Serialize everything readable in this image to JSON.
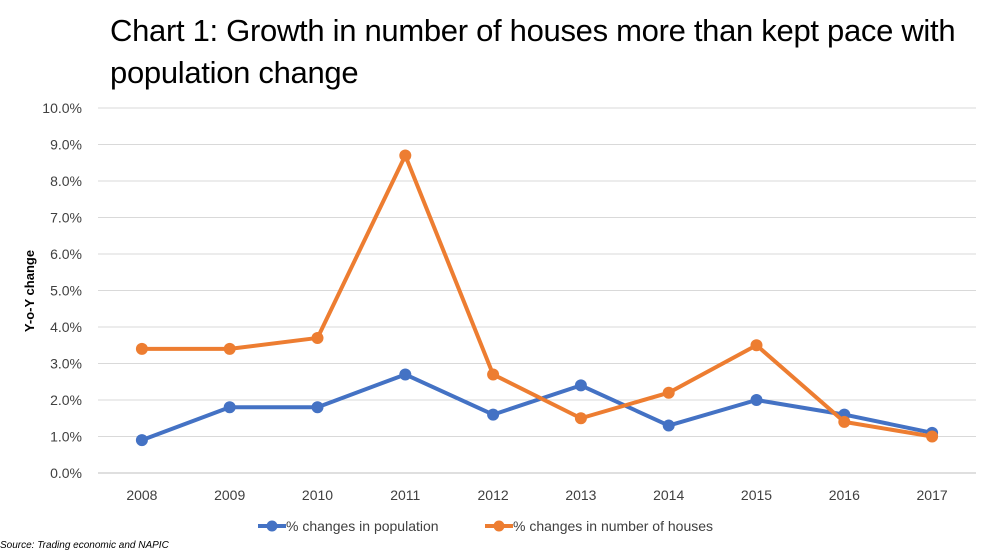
{
  "chart_data": {
    "type": "line",
    "title": "Chart 1: Growth in number of houses more than kept pace with population change",
    "ylabel": "Y-o-Y change",
    "xlabel": "",
    "x": [
      "2008",
      "2009",
      "2010",
      "2011",
      "2012",
      "2013",
      "2014",
      "2015",
      "2016",
      "2017"
    ],
    "ylim": [
      0,
      10
    ],
    "yticks": [
      "0.0%",
      "1.0%",
      "2.0%",
      "3.0%",
      "4.0%",
      "5.0%",
      "6.0%",
      "7.0%",
      "8.0%",
      "9.0%",
      "10.0%"
    ],
    "grid": true,
    "legend_position": "bottom",
    "series": [
      {
        "name": "% changes in population",
        "color": "#4472C4",
        "values": [
          0.9,
          1.8,
          1.8,
          2.7,
          1.6,
          2.4,
          1.3,
          2.0,
          1.6,
          1.1
        ]
      },
      {
        "name": "% changes in number of houses",
        "color": "#ED7D31",
        "values": [
          3.4,
          3.4,
          3.7,
          8.7,
          2.7,
          1.5,
          2.2,
          3.5,
          1.4,
          1.0
        ]
      }
    ]
  },
  "source": "Source: Trading economic and NAPIC"
}
